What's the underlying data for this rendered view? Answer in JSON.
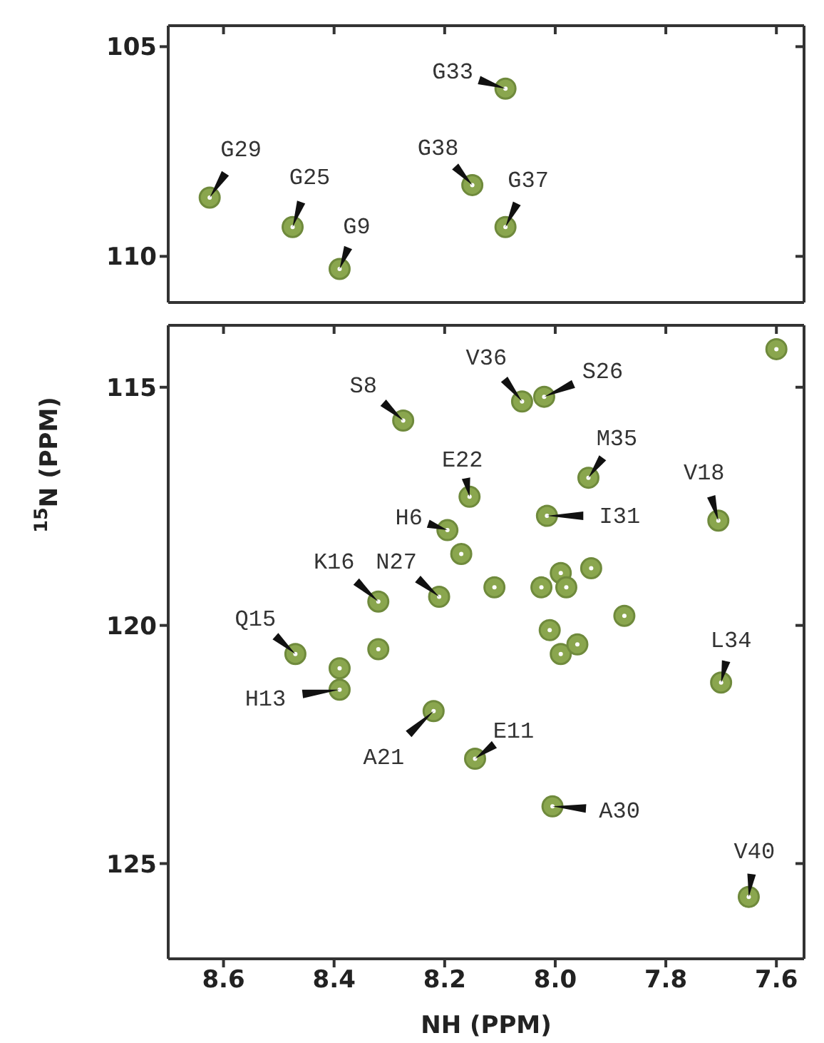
{
  "chart_data": [
    {
      "type": "scatter",
      "xlim": [
        8.7,
        7.55
      ],
      "xticks": [
        8.6,
        8.4,
        8.2,
        8,
        7.8,
        7.6
      ],
      "ylim": [
        111.1,
        104.5
      ],
      "yticks": [
        105,
        110
      ],
      "tick_labels": "y",
      "marker": "circle",
      "x": [
        8.09,
        8.625,
        8.475,
        8.39,
        8.15,
        8.09
      ],
      "series": [
        {
          "color": "#8aa64e",
          "values": [
            106.0,
            108.6,
            109.3,
            110.3,
            108.3,
            109.3
          ]
        }
      ],
      "annotations": [
        {
          "text": "G33",
          "x": 8.09,
          "y": 106.0
        },
        {
          "text": "G29",
          "x": 8.625,
          "y": 108.6
        },
        {
          "text": "G25",
          "x": 8.475,
          "y": 109.3
        },
        {
          "text": "G9",
          "x": 8.39,
          "y": 110.3
        },
        {
          "text": "G38",
          "x": 8.15,
          "y": 108.3
        },
        {
          "text": "G37",
          "x": 8.09,
          "y": 109.3
        }
      ]
    },
    {
      "type": "scatter",
      "xlim": [
        8.7,
        7.55
      ],
      "xticks": [
        8.6,
        8.4,
        8.2,
        {
          "value": 8,
          "label": "8.0"
        },
        7.8,
        7.6
      ],
      "ylim": [
        127,
        113.7
      ],
      "yticks": [
        115,
        120,
        125
      ],
      "marker": "circle",
      "xlabel": "NH (PPM)",
      "ylabel": "$^{15}$N (PPM)",
      "x": [
        7.6,
        8.275,
        8.06,
        8.02,
        8.155,
        7.94,
        7.705,
        8.015,
        8.195,
        8.17,
        8.32,
        8.21,
        8.11,
        7.99,
        7.935,
        8.025,
        7.98,
        7.875,
        8.01,
        7.99,
        7.96,
        8.47,
        8.32,
        8.39,
        7.7,
        8.39,
        8.22,
        8.145,
        8.005,
        7.65
      ],
      "series": [
        {
          "color": "#8aa64e",
          "values": [
            114.2,
            115.7,
            115.3,
            115.2,
            117.3,
            116.9,
            117.8,
            117.7,
            118.0,
            118.5,
            119.5,
            119.4,
            119.2,
            118.9,
            118.8,
            119.2,
            119.2,
            119.8,
            120.1,
            120.6,
            120.4,
            120.6,
            120.5,
            120.9,
            121.2,
            121.35,
            121.8,
            122.8,
            123.8,
            125.7
          ]
        }
      ],
      "annotations": [
        {
          "text": "S8",
          "x": 8.275,
          "y": 115.7
        },
        {
          "text": "V36",
          "x": 8.06,
          "y": 115.3
        },
        {
          "text": "S26",
          "x": 8.02,
          "y": 115.2
        },
        {
          "text": "E22",
          "x": 8.155,
          "y": 117.3
        },
        {
          "text": "M35",
          "x": 7.94,
          "y": 116.9
        },
        {
          "text": "V18",
          "x": 7.705,
          "y": 117.8
        },
        {
          "text": "I31",
          "x": 8.015,
          "y": 117.7
        },
        {
          "text": "H6",
          "x": 8.195,
          "y": 118.0
        },
        {
          "text": "K16",
          "x": 8.32,
          "y": 119.5
        },
        {
          "text": "N27",
          "x": 8.21,
          "y": 119.4
        },
        {
          "text": "Q15",
          "x": 8.47,
          "y": 120.6
        },
        {
          "text": "L34",
          "x": 7.7,
          "y": 121.2
        },
        {
          "text": "H13",
          "x": 8.39,
          "y": 121.35
        },
        {
          "text": "A21",
          "x": 8.22,
          "y": 121.8
        },
        {
          "text": "E11",
          "x": 8.145,
          "y": 122.8
        },
        {
          "text": "A30",
          "x": 8.005,
          "y": 123.8
        },
        {
          "text": "V40",
          "x": 7.65,
          "y": 125.7
        }
      ]
    }
  ]
}
